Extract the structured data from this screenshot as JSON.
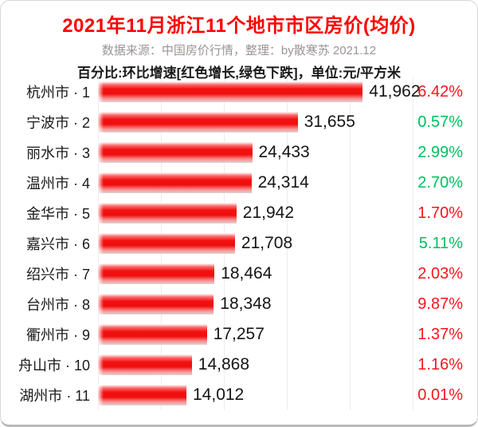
{
  "header": {
    "title": "2021年11月浙江11个地市市区房价(均价)",
    "subtitle": "数据来源：中国房价行情，整理：by散寒苏 2021.12",
    "note": "百分比:环比增速[红色增长,绿色下跌]，单位:元/平方米"
  },
  "colors": {
    "title_red": "#ff0000",
    "subtitle_gray": "#9c9494",
    "note_black": "#1a1a1a",
    "bar_red": "#f11212",
    "pct_up_red": "#fb141e",
    "pct_down_green": "#00c060",
    "gridline_gray": "#ececec"
  },
  "chart_data": {
    "type": "bar",
    "orientation": "horizontal",
    "title": "2021年11月浙江11个地市市区房价(均价)",
    "unit": "元/平方米",
    "pct_meaning": "环比增速[红色增长,绿色下跌]",
    "xlim": [
      0,
      50000
    ],
    "gridline_step": 10000,
    "legend_position": "none",
    "grid": "vertical-only",
    "categories": [
      "杭州市 · 1",
      "宁波市 · 2",
      "丽水市 · 3",
      "温州市 · 4",
      "金华市 · 5",
      "嘉兴市 · 6",
      "绍兴市 · 7",
      "台州市 · 8",
      "衢州市 · 9",
      "舟山市 · 10",
      "湖州市 · 11"
    ],
    "values": [
      41962,
      31655,
      24433,
      24314,
      21942,
      21708,
      18464,
      18348,
      17257,
      14868,
      14012
    ],
    "value_labels": [
      "41,962",
      "31,655",
      "24,433",
      "24,314",
      "21,942",
      "21,708",
      "18,464",
      "18,348",
      "17,257",
      "14,868",
      "14,012"
    ],
    "pct_labels": [
      "6.42%",
      "0.57%",
      "2.99%",
      "2.70%",
      "1.70%",
      "5.11%",
      "2.03%",
      "9.87%",
      "1.37%",
      "1.16%",
      "0.01%"
    ],
    "pct_direction": [
      "up",
      "down",
      "down",
      "down",
      "up",
      "down",
      "up",
      "up",
      "up",
      "up",
      "up"
    ]
  }
}
